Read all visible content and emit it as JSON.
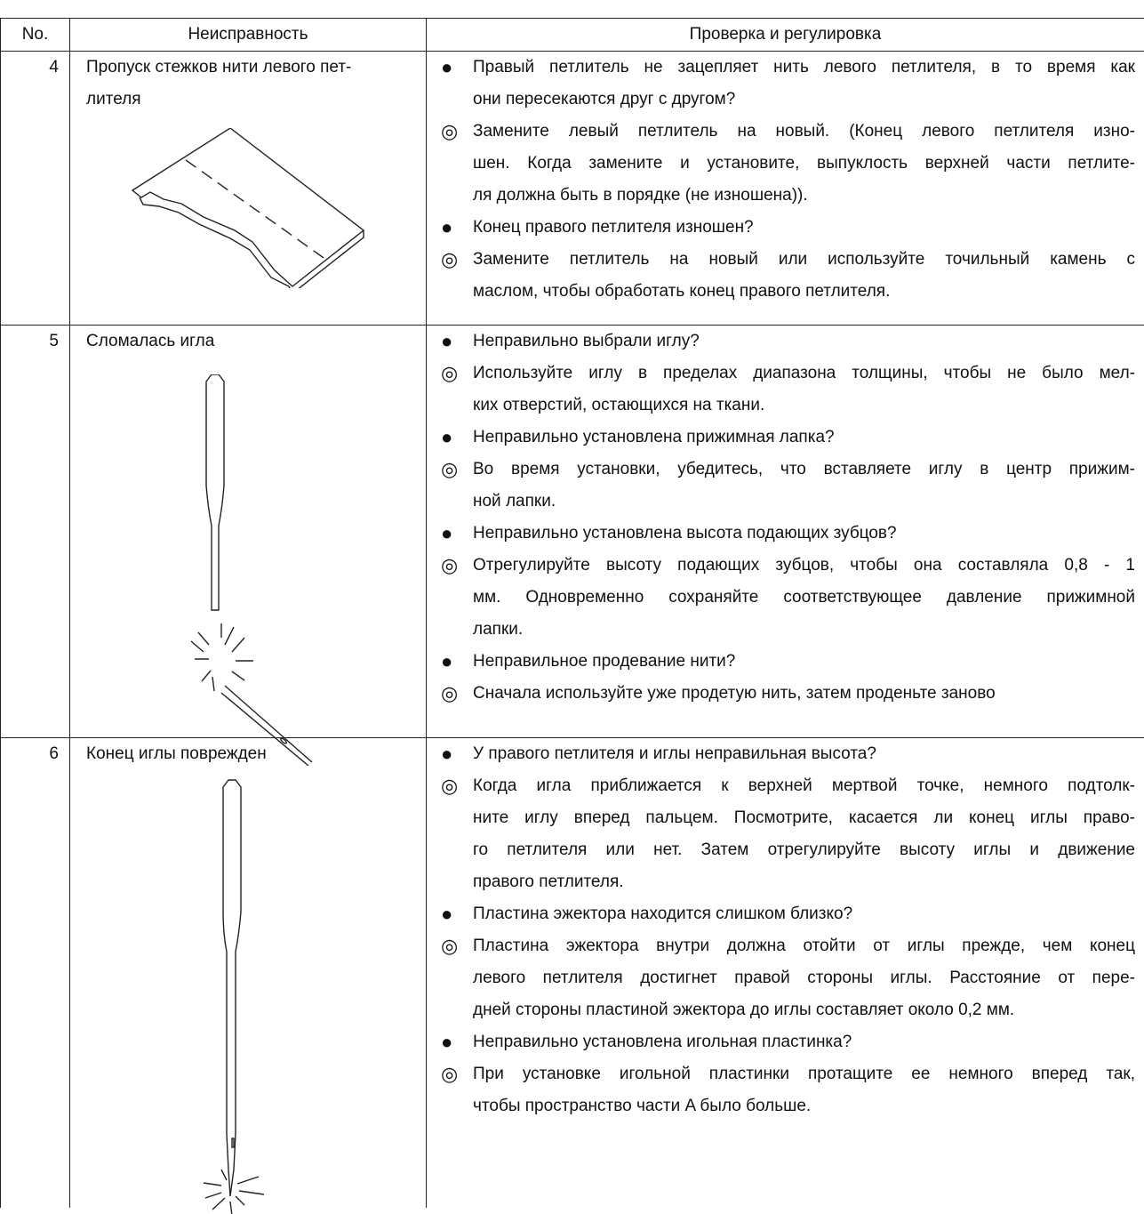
{
  "header": {
    "no": "No.",
    "fault": "Неисправность",
    "check": "Проверка и регулировка"
  },
  "rows": [
    {
      "no": "4",
      "fault_lines": [
        "Пропуск стежков нити левого пет-",
        "лителя"
      ],
      "items": [
        {
          "marker": "●",
          "lines": [
            "Правый петлитель не зацепляет нить левого петлителя, в то время как",
            "они пересекаются друг с другом?"
          ]
        },
        {
          "marker": "◎",
          "lines": [
            "Замените левый петлитель на новый. (Конец левого петлителя изно-",
            "шен. Когда замените и установите, выпуклость верхней части петлите-",
            "ля должна быть в порядке (не изношена))."
          ]
        },
        {
          "marker": "●",
          "lines": [
            "Конец правого петлителя изношен?"
          ]
        },
        {
          "marker": "◎",
          "lines": [
            "Замените петлитель на новый или используйте точильный камень с",
            "маслом, чтобы обработать конец правого петлителя."
          ]
        }
      ]
    },
    {
      "no": "5",
      "fault_lines": [
        "Сломалась игла"
      ],
      "items": [
        {
          "marker": "●",
          "lines": [
            "Неправильно выбрали иглу?"
          ]
        },
        {
          "marker": "◎",
          "lines": [
            "Используйте иглу в пределах диапазона толщины, чтобы не было мел-",
            "ких отверстий, остающихся на ткани."
          ]
        },
        {
          "marker": "●",
          "lines": [
            "Неправильно установлена прижимная лапка?"
          ]
        },
        {
          "marker": "◎",
          "lines": [
            "Во время установки, убедитесь, что вставляете иглу в  центр прижим-",
            "ной лапки."
          ]
        },
        {
          "marker": "●",
          "lines": [
            "Неправильно установлена высота подающих зубцов?"
          ]
        },
        {
          "marker": "◎",
          "lines": [
            "Отрегулируйте высоту подающих зубцов, чтобы она составляла 0,8 - 1",
            "мм. Одновременно сохраняйте соответствующее давление прижимной",
            "лапки."
          ]
        },
        {
          "marker": "●",
          "lines": [
            "Неправильное продевание нити?"
          ]
        },
        {
          "marker": "◎",
          "lines": [
            "Сначала используйте уже продетую нить, затем проденьте заново"
          ]
        }
      ]
    },
    {
      "no": "6",
      "fault_lines": [
        "Конец иглы поврежден"
      ],
      "items": [
        {
          "marker": "●",
          "lines": [
            "У правого петлителя и иглы неправильная высота?"
          ]
        },
        {
          "marker": "◎",
          "lines": [
            "Когда игла приближается к верхней мертвой точке, немного подтолк-",
            "ните иглу вперед пальцем. Посмотрите, касается ли конец иглы право-",
            "го петлителя или нет. Затем отрегулируйте высоту иглы и движение",
            "правого петлителя."
          ]
        },
        {
          "marker": "●",
          "lines": [
            "Пластина эжектора находится слишком близко?"
          ]
        },
        {
          "marker": "◎",
          "lines": [
            "Пластина эжектора внутри должна отойти от иглы прежде, чем конец",
            "левого петлителя достигнет правой стороны иглы. Расстояние от пере-",
            "дней стороны пластиной эжектора до иглы составляет около 0,2 мм."
          ]
        },
        {
          "marker": "●",
          "lines": [
            "Неправильно установлена игольная пластинка?"
          ]
        },
        {
          "marker": "◎",
          "lines": [
            "При установке игольной пластинки протащите ее немного вперед так,",
            "чтобы пространство части A было больше."
          ]
        }
      ]
    }
  ]
}
